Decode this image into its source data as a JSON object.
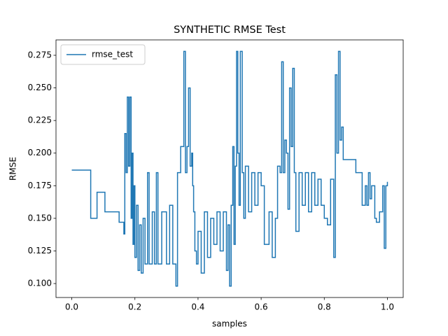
{
  "chart_data": {
    "type": "line",
    "title": "SYNTHETIC RMSE Test",
    "x_label": "samples",
    "y_label": "RMSE",
    "x": [
      0.0,
      0.06,
      0.08,
      0.105,
      0.15,
      0.165,
      0.168,
      0.172,
      0.176,
      0.18,
      0.184,
      0.188,
      0.191,
      0.194,
      0.197,
      0.2,
      0.205,
      0.21,
      0.215,
      0.22,
      0.226,
      0.232,
      0.24,
      0.245,
      0.255,
      0.262,
      0.268,
      0.273,
      0.285,
      0.3,
      0.31,
      0.32,
      0.33,
      0.335,
      0.345,
      0.355,
      0.36,
      0.365,
      0.37,
      0.375,
      0.38,
      0.383,
      0.386,
      0.39,
      0.395,
      0.4,
      0.41,
      0.42,
      0.43,
      0.44,
      0.45,
      0.46,
      0.47,
      0.48,
      0.49,
      0.495,
      0.5,
      0.505,
      0.51,
      0.514,
      0.518,
      0.522,
      0.526,
      0.53,
      0.534,
      0.54,
      0.545,
      0.55,
      0.56,
      0.57,
      0.58,
      0.59,
      0.6,
      0.61,
      0.625,
      0.635,
      0.645,
      0.652,
      0.66,
      0.665,
      0.67,
      0.675,
      0.68,
      0.685,
      0.69,
      0.695,
      0.7,
      0.705,
      0.71,
      0.72,
      0.73,
      0.74,
      0.75,
      0.76,
      0.77,
      0.78,
      0.79,
      0.8,
      0.81,
      0.82,
      0.83,
      0.835,
      0.84,
      0.845,
      0.85,
      0.855,
      0.86,
      0.9,
      0.92,
      0.93,
      0.935,
      0.94,
      0.945,
      0.95,
      0.96,
      0.965,
      0.975,
      0.985,
      0.99,
      0.995,
      1.0
    ],
    "series": [
      {
        "name": "rmse_test",
        "color": "#1f77b4",
        "values": [
          0.187,
          0.15,
          0.17,
          0.155,
          0.147,
          0.138,
          0.215,
          0.185,
          0.243,
          0.19,
          0.243,
          0.15,
          0.2,
          0.13,
          0.175,
          0.12,
          0.16,
          0.11,
          0.145,
          0.108,
          0.15,
          0.115,
          0.185,
          0.115,
          0.155,
          0.115,
          0.185,
          0.115,
          0.155,
          0.115,
          0.16,
          0.115,
          0.098,
          0.185,
          0.205,
          0.278,
          0.185,
          0.205,
          0.25,
          0.19,
          0.2,
          0.175,
          0.155,
          0.125,
          0.115,
          0.14,
          0.108,
          0.155,
          0.12,
          0.15,
          0.13,
          0.155,
          0.125,
          0.155,
          0.11,
          0.145,
          0.098,
          0.16,
          0.205,
          0.13,
          0.19,
          0.278,
          0.2,
          0.16,
          0.278,
          0.185,
          0.15,
          0.19,
          0.155,
          0.185,
          0.16,
          0.185,
          0.175,
          0.13,
          0.155,
          0.12,
          0.15,
          0.19,
          0.185,
          0.27,
          0.185,
          0.21,
          0.2,
          0.157,
          0.25,
          0.205,
          0.265,
          0.185,
          0.14,
          0.185,
          0.16,
          0.185,
          0.155,
          0.185,
          0.16,
          0.18,
          0.16,
          0.15,
          0.145,
          0.18,
          0.12,
          0.26,
          0.2,
          0.278,
          0.21,
          0.22,
          0.195,
          0.185,
          0.16,
          0.175,
          0.16,
          0.185,
          0.165,
          0.175,
          0.15,
          0.147,
          0.155,
          0.175,
          0.127,
          0.175,
          0.178
        ]
      }
    ],
    "drawstyle": "steps-post",
    "xlim": [
      -0.05,
      1.05
    ],
    "xticks": [
      {
        "value": 0,
        "label": "0.0"
      },
      {
        "value": 0.2,
        "label": "0.2"
      },
      {
        "value": 0.4,
        "label": "0.4"
      },
      {
        "value": 0.6,
        "label": "0.6"
      },
      {
        "value": 0.8,
        "label": "0.8"
      },
      {
        "value": 1,
        "label": "1.0"
      }
    ],
    "ylim": [
      0.0893,
      0.2868
    ],
    "yticks": [
      {
        "value": 0.1,
        "label": "0.100"
      },
      {
        "value": 0.125,
        "label": "0.125"
      },
      {
        "value": 0.15,
        "label": "0.150"
      },
      {
        "value": 0.175,
        "label": "0.175"
      },
      {
        "value": 0.2,
        "label": "0.200"
      },
      {
        "value": 0.225,
        "label": "0.225"
      },
      {
        "value": 0.25,
        "label": "0.250"
      },
      {
        "value": 0.275,
        "label": "0.275"
      }
    ],
    "legend": "upper left",
    "grid": false
  }
}
